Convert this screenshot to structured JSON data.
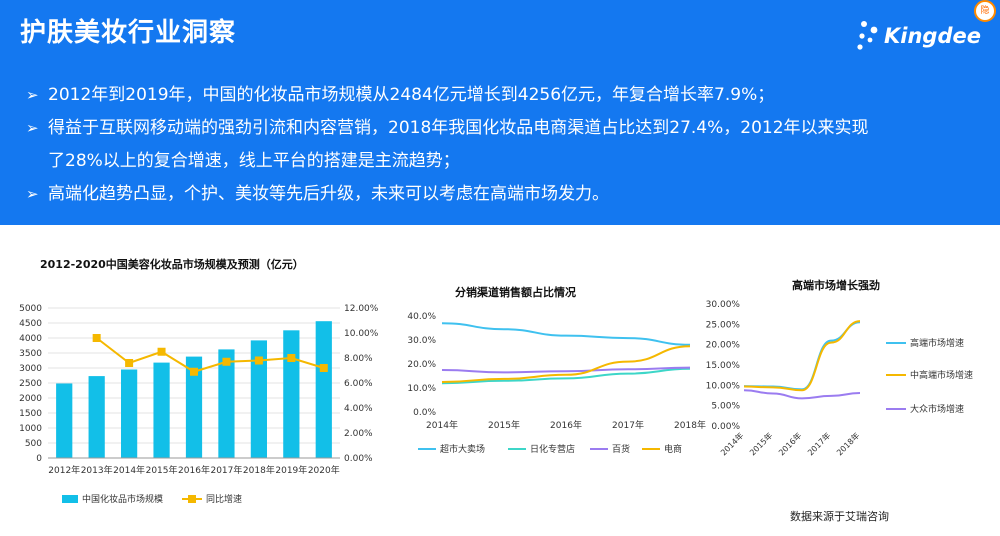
{
  "header": {
    "title": "护肤美妆行业洞察",
    "logo_text": "Kingdee",
    "bullets": [
      "2012年到2019年，中国的化妆品市场规模从2484亿元增长到4256亿元，年复合增长率7.9%；",
      "得益于互联网移动端的强劲引流和内容营销，2018年我国化妆品电商渠道占比达到27.4%，2012年以来实现",
      "了28%以上的复合增速，线上平台的搭建是主流趋势；",
      "高端化趋势凸显，个护、美妆等先后升级，未来可以考虑在高端市场发力。"
    ]
  },
  "colors": {
    "header_bg": "#1478f0",
    "bar": "#12bfe8",
    "growth_line": "#f5b800",
    "supermarket": "#3fc1ef",
    "specialty_store": "#3dd6c8",
    "department_store": "#9b7cf0",
    "ecommerce": "#f5b800",
    "highend": "#3fc1ef",
    "mid_highend": "#f5b800",
    "mass": "#9b7cf0"
  },
  "source": "数据来源于艾瑞咨询",
  "chart_data": [
    {
      "type": "bar",
      "title": "2012-2020中国美容化妆品市场规模及预测（亿元）",
      "categories": [
        "2012年",
        "2013年",
        "2014年",
        "2015年",
        "2016年",
        "2017年",
        "2018年",
        "2019年",
        "2020年"
      ],
      "series": [
        {
          "name": "中国化妆品市场规模",
          "type": "bar",
          "axis": "left",
          "values": [
            2484,
            2730,
            2950,
            3180,
            3380,
            3620,
            3920,
            4256,
            4560
          ]
        },
        {
          "name": "同比增速",
          "type": "line",
          "axis": "right",
          "values": [
            null,
            0.096,
            0.076,
            0.085,
            0.069,
            0.077,
            0.078,
            0.08,
            0.072
          ]
        }
      ],
      "ylim": [
        0,
        5000
      ],
      "y_ticks": [
        0,
        500,
        1000,
        1500,
        2000,
        2500,
        3000,
        3500,
        4000,
        4500,
        5000
      ],
      "y2lim": [
        0,
        0.12
      ],
      "y2_ticks": [
        "0.00%",
        "2.00%",
        "4.00%",
        "6.00%",
        "8.00%",
        "10.00%",
        "12.00%"
      ],
      "grid": true,
      "legend_position": "bottom"
    },
    {
      "type": "line",
      "title": "分销渠道销售额占比情况",
      "categories": [
        "2014年",
        "2015年",
        "2016年",
        "2017年",
        "2018年"
      ],
      "series": [
        {
          "name": "超市大卖场",
          "values": [
            0.37,
            0.345,
            0.318,
            0.308,
            0.28
          ]
        },
        {
          "name": "日化专营店",
          "values": [
            0.12,
            0.13,
            0.14,
            0.16,
            0.18
          ]
        },
        {
          "name": "百货",
          "values": [
            0.175,
            0.165,
            0.17,
            0.178,
            0.185
          ]
        },
        {
          "name": "电商",
          "values": [
            0.125,
            0.138,
            0.155,
            0.21,
            0.274
          ]
        }
      ],
      "ylim": [
        0,
        0.4
      ],
      "y_ticks": [
        "0.0%",
        "10.0%",
        "20.0%",
        "30.0%",
        "40.0%"
      ],
      "legend_position": "bottom"
    },
    {
      "type": "line",
      "title": "高端市场增长强劲",
      "categories": [
        "2014年",
        "2015年",
        "2016年",
        "2017年",
        "2018年"
      ],
      "series": [
        {
          "name": "高端市场增速",
          "values": [
            0.098,
            0.097,
            0.09,
            0.21,
            0.255
          ]
        },
        {
          "name": "中高端市场增速",
          "values": [
            0.097,
            0.095,
            0.088,
            0.205,
            0.258
          ]
        },
        {
          "name": "大众市场增速",
          "values": [
            0.088,
            0.08,
            0.068,
            0.074,
            0.081
          ]
        }
      ],
      "ylim": [
        0,
        0.3
      ],
      "y_ticks": [
        "0.00%",
        "5.00%",
        "10.00%",
        "15.00%",
        "20.00%",
        "25.00%",
        "30.00%"
      ],
      "legend_position": "right"
    }
  ]
}
